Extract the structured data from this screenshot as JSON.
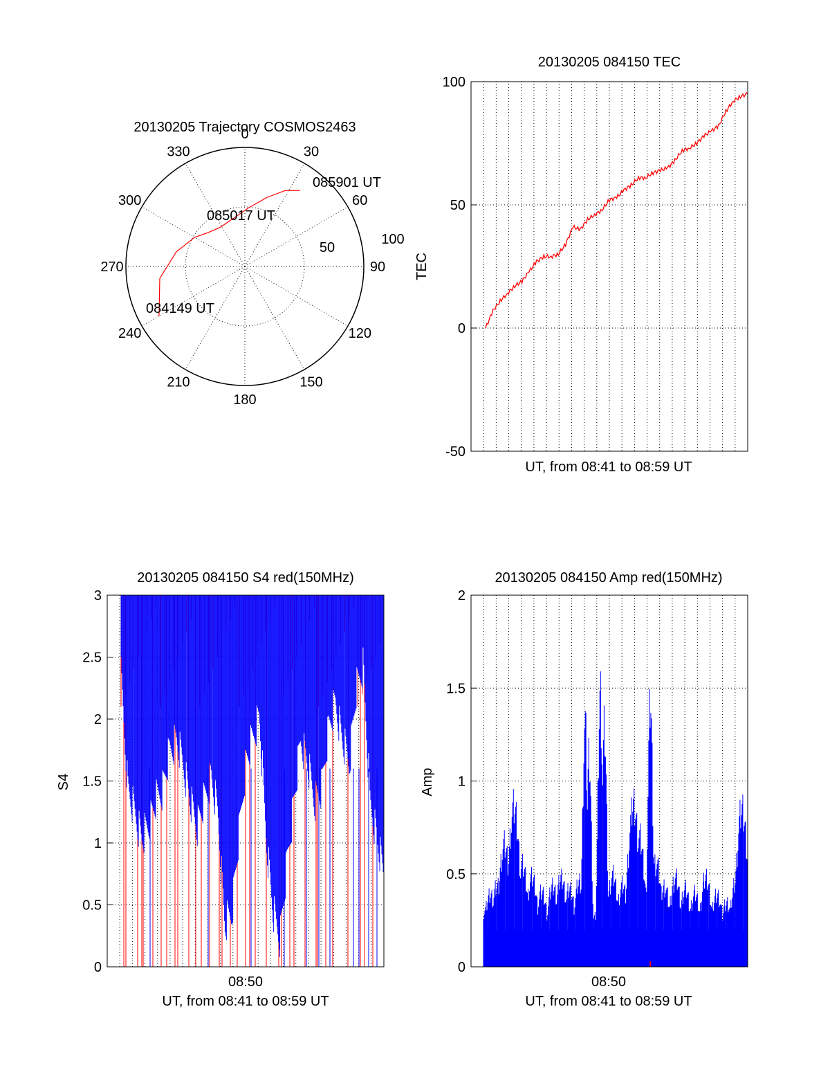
{
  "chart_data": [
    {
      "type": "polar",
      "title": "20130205 Trajectory COSMOS2463",
      "azimuth_labels": [
        "0",
        "30",
        "60",
        "90",
        "120",
        "150",
        "180",
        "210",
        "240",
        "270",
        "300",
        "330"
      ],
      "radial_labels": [
        "50",
        "100"
      ],
      "grid": true,
      "trajectory": {
        "color": "#ff0000",
        "points": [
          {
            "az": 240,
            "el": 15
          },
          {
            "az": 262,
            "el": 25
          },
          {
            "az": 282,
            "el": 37
          },
          {
            "az": 300,
            "el": 46
          },
          {
            "az": 312,
            "el": 52
          },
          {
            "az": 328,
            "el": 55
          },
          {
            "az": 345,
            "el": 53
          },
          {
            "az": 3,
            "el": 46
          },
          {
            "az": 18,
            "el": 35
          },
          {
            "az": 28,
            "el": 25
          },
          {
            "az": 36,
            "el": 19
          }
        ],
        "annotations": [
          "084149 UT",
          "085017 UT",
          "085901 UT"
        ]
      }
    },
    {
      "type": "line",
      "title": "20130205 084150 TEC",
      "xlabel": "UT, from 08:41 to 08:59 UT",
      "ylabel": "TEC",
      "ylim": [
        -50,
        100
      ],
      "yticks": [
        "100",
        "50",
        "0",
        "-50"
      ],
      "xlim": [
        0,
        19
      ],
      "grid": true,
      "series": [
        {
          "color": "#ff0000",
          "x": [
            1.0,
            1.5,
            2.0,
            2.5,
            3.0,
            3.5,
            4.0,
            4.5,
            5.0,
            5.5,
            6.0,
            6.5,
            7.0,
            7.5,
            8.0,
            8.5,
            9.0,
            9.5,
            10.0,
            10.5,
            11.0,
            11.5,
            12.0,
            12.5,
            13.0,
            13.5,
            14.0,
            14.5,
            15.0,
            15.5,
            16.0,
            16.5,
            17.0,
            17.5,
            18.0,
            18.5,
            19.0
          ],
          "y": [
            0,
            7,
            11,
            14,
            17,
            19,
            23,
            27,
            29,
            29,
            30,
            34,
            41,
            40,
            44,
            46,
            48,
            52,
            53,
            56,
            58,
            61,
            61,
            63,
            64,
            65,
            68,
            72,
            73,
            75,
            78,
            80,
            82,
            88,
            92,
            94,
            95
          ]
        }
      ]
    },
    {
      "type": "line",
      "title": "20130205 084150 S4 red(150MHz)",
      "xlabel": "UT, from 08:41 to 08:59 UT",
      "ylabel": "S4",
      "ylim": [
        0,
        3
      ],
      "yticks": [
        "3",
        "2.5",
        "2",
        "1.5",
        "1",
        "0.5",
        "0"
      ],
      "xtick_label": "08:50",
      "grid": true,
      "series": [
        {
          "color": "#0000ff",
          "envelope_low": [
            2.5,
            1.6,
            1.4,
            1.2,
            1.3,
            1.5,
            1.6,
            1.9,
            2.0,
            1.8,
            1.5,
            1.3,
            1.5,
            1.7,
            1.4,
            0.5,
            0.6,
            1.2,
            1.8,
            2.0,
            2.2,
            1.2,
            0.6,
            0.4,
            1.0,
            1.5,
            2.0,
            1.8,
            1.5,
            1.6,
            2.1,
            2.3,
            2.0,
            1.8,
            2.4,
            2.6,
            1.5,
            1.2,
            0.9
          ]
        },
        {
          "color": "#ff0000",
          "drop_positions": [
            0.2,
            0.35,
            1.2,
            1.5,
            1.6,
            2.3,
            2.9,
            3.3,
            3.9,
            4.1,
            4.9,
            5.4,
            5.8,
            6.4,
            7.1,
            7.3,
            7.9,
            8.4,
            9.0,
            9.3,
            9.7,
            10.5,
            11.4,
            11.6,
            12.2,
            12.5,
            13.3,
            14.1,
            14.2,
            14.8,
            15.3,
            16.4,
            17.3,
            17.6,
            18.2
          ]
        }
      ]
    },
    {
      "type": "line",
      "title": "20130205 084150 Amp red(150MHz)",
      "xlabel": "UT, from 08:41 to 08:59 UT",
      "ylabel": "Amp",
      "ylim": [
        0,
        2
      ],
      "yticks": [
        "2",
        "1.5",
        "1",
        "0.5",
        "0"
      ],
      "xtick_label": "08:50",
      "grid": true,
      "series": [
        {
          "color": "#0000ff",
          "peaks": [
            {
              "x": 0.1,
              "value": 0.35
            },
            {
              "x": 0.5,
              "value": 0.45
            },
            {
              "x": 1.0,
              "value": 0.5
            },
            {
              "x": 1.5,
              "value": 0.75
            },
            {
              "x": 2.2,
              "value": 0.98
            },
            {
              "x": 2.8,
              "value": 0.62
            },
            {
              "x": 3.5,
              "value": 0.55
            },
            {
              "x": 4.2,
              "value": 0.46
            },
            {
              "x": 5.0,
              "value": 0.5
            },
            {
              "x": 5.6,
              "value": 0.55
            },
            {
              "x": 6.2,
              "value": 0.48
            },
            {
              "x": 6.9,
              "value": 0.52
            },
            {
              "x": 7.3,
              "value": 1.5
            },
            {
              "x": 7.6,
              "value": 1.3
            },
            {
              "x": 8.4,
              "value": 1.7
            },
            {
              "x": 8.7,
              "value": 1.45
            },
            {
              "x": 9.3,
              "value": 0.56
            },
            {
              "x": 10.0,
              "value": 0.5
            },
            {
              "x": 10.8,
              "value": 1.0
            },
            {
              "x": 11.2,
              "value": 0.8
            },
            {
              "x": 12.0,
              "value": 1.64
            },
            {
              "x": 12.4,
              "value": 0.65
            },
            {
              "x": 13.0,
              "value": 0.5
            },
            {
              "x": 13.8,
              "value": 0.55
            },
            {
              "x": 14.5,
              "value": 0.48
            },
            {
              "x": 15.2,
              "value": 0.45
            },
            {
              "x": 16.0,
              "value": 0.55
            },
            {
              "x": 16.8,
              "value": 0.45
            },
            {
              "x": 17.5,
              "value": 0.4
            },
            {
              "x": 18.2,
              "value": 0.55
            },
            {
              "x": 18.6,
              "value": 0.97
            },
            {
              "x": 18.9,
              "value": 0.7
            }
          ]
        },
        {
          "color": "#ff0000",
          "spike": {
            "x": 12.0,
            "value": 0.03
          }
        }
      ]
    }
  ]
}
